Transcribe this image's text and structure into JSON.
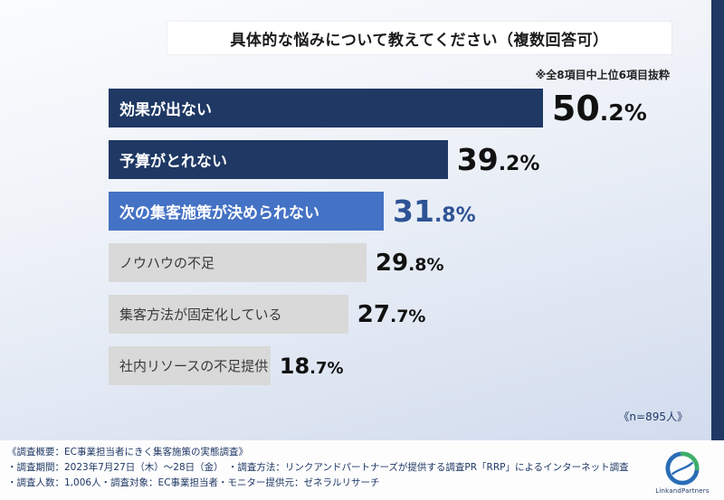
{
  "chart_data": {
    "type": "bar",
    "orientation": "horizontal",
    "title": "具体的な悩みについて教えてください（複数回答可）",
    "note": "※全8項目中上位6項目抜粋",
    "sample_label": "《n=895人》",
    "categories": [
      "効果が出ない",
      "予算がとれない",
      "次の集客施策が決められない",
      "ノウハウの不足",
      "集客方法が固定化している",
      "社内リソースの不足提供"
    ],
    "values": [
      50.2,
      39.2,
      31.8,
      29.8,
      27.7,
      18.7
    ],
    "value_labels": [
      "50.2%",
      "39.2%",
      "31.8%",
      "29.8%",
      "27.7%",
      "18.7%"
    ],
    "xlim": [
      0,
      55
    ],
    "grid": false,
    "legend": false,
    "bar_colors": [
      "#1f3864",
      "#1f3864",
      "#4472c4",
      "#d9d9d9",
      "#d9d9d9",
      "#d9d9d9"
    ],
    "label_colors": [
      "#ffffff",
      "#ffffff",
      "#ffffff",
      "#3a3a3a",
      "#3a3a3a",
      "#3a3a3a"
    ],
    "value_colors": [
      "#111111",
      "#111111",
      "#2e5395",
      "#111111",
      "#111111",
      "#111111"
    ]
  },
  "colors": {
    "frame_navy": "#1f3864",
    "accent_blue": "#4472c4",
    "bar_gray": "#d9d9d9"
  },
  "footer": {
    "line1": "《調査概要：EC事業担当者にきく集客施策の実態調査》",
    "line2": "・調査期間：2023年7月27日（木）〜28日（金）　・調査方法：リンクアンドパートナーズが提供する調査PR「RRP」によるインターネット調査",
    "line3": "・調査人数：1,006人・調査対象：EC事業担当者・モニター提供元：ゼネラルリサーチ",
    "logo_text": "LinkandPartners"
  }
}
